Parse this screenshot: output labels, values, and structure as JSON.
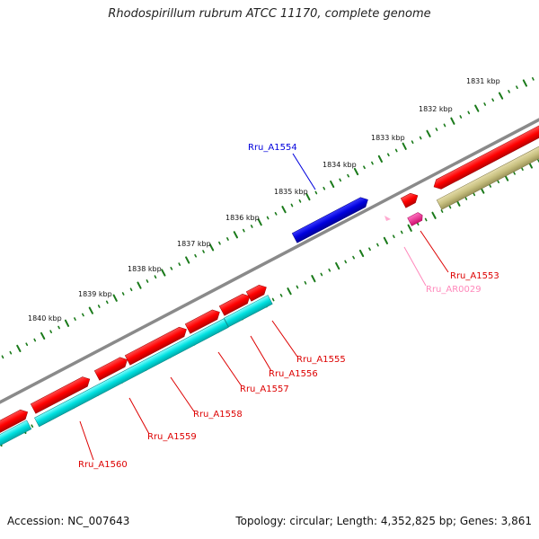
{
  "title": "Rhodospirillum rubrum ATCC 11170, complete genome",
  "footer": {
    "accession": "Accession: NC_007643",
    "summary": "Topology: circular; Length: 4,352,825 bp; Genes: 3,861"
  },
  "colors": {
    "backbone": "#8a8a8a",
    "ruler": "#1a7a1a",
    "forward_cds": "#ff0000",
    "reverse_cds": "#00dcdc",
    "selected_cds": "#0000dd",
    "rna": "#ff2299",
    "rna_label": "#ff88bb",
    "other": "#c8c080"
  },
  "ruler_labels": [
    "1831 kbp",
    "1832 kbp",
    "1833 kbp",
    "1834 kbp",
    "1835 kbp",
    "1836 kbp",
    "1837 kbp",
    "1838 kbp",
    "1839 kbp",
    "1840 kbp"
  ],
  "gene_labels": [
    {
      "text": "Rru_A1554",
      "color": "#0000dd"
    },
    {
      "text": "Rru_A1553",
      "color": "#dd0000"
    },
    {
      "text": "Rru_AR0029",
      "color": "#ff88bb"
    },
    {
      "text": "Rru_A1555",
      "color": "#dd0000"
    },
    {
      "text": "Rru_A1556",
      "color": "#dd0000"
    },
    {
      "text": "Rru_A1557",
      "color": "#dd0000"
    },
    {
      "text": "Rru_A1558",
      "color": "#dd0000"
    },
    {
      "text": "Rru_A1559",
      "color": "#dd0000"
    },
    {
      "text": "Rru_A1560",
      "color": "#dd0000"
    }
  ]
}
